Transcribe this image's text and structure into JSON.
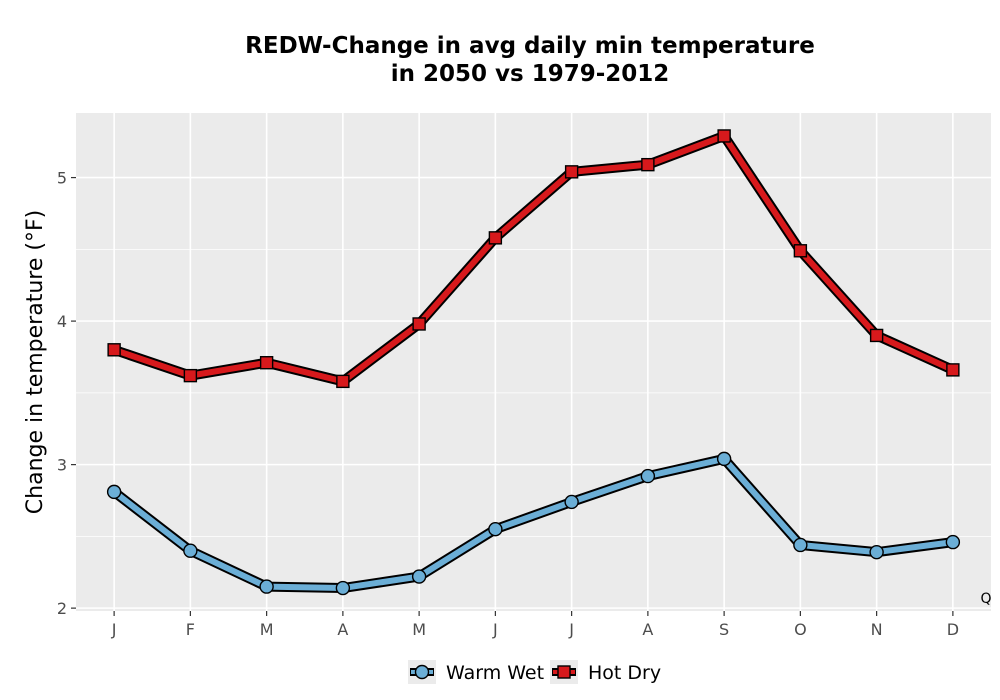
{
  "chart_data": {
    "type": "line",
    "title": [
      "REDW-Change in avg daily min temperature",
      "in 2050 vs 1979-2012"
    ],
    "xlabel": "",
    "ylabel": "Change in temperature (°F)",
    "categories": [
      "J",
      "F",
      "M",
      "A",
      "M",
      "J",
      "J",
      "A",
      "S",
      "O",
      "N",
      "D"
    ],
    "ylim": [
      1.98,
      5.45
    ],
    "yticks": [
      2,
      3,
      4,
      5
    ],
    "grid": true,
    "legend_position": "bottom",
    "series": [
      {
        "name": "Warm Wet",
        "marker": "circle",
        "color": "#6baed6",
        "values": [
          2.81,
          2.4,
          2.15,
          2.14,
          2.22,
          2.55,
          2.74,
          2.92,
          3.04,
          2.44,
          2.39,
          2.46
        ]
      },
      {
        "name": "Hot Dry",
        "marker": "square",
        "color": "#d7191c",
        "values": [
          3.8,
          3.62,
          3.71,
          3.58,
          3.98,
          4.58,
          5.04,
          5.09,
          5.29,
          4.49,
          3.9,
          3.66
        ]
      }
    ],
    "corner_label": "Q"
  }
}
